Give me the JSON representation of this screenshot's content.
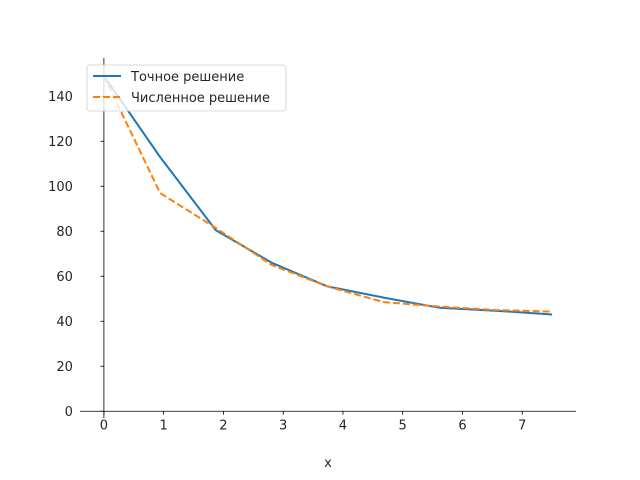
{
  "chart_data": {
    "type": "line",
    "title": "",
    "xlabel": "x",
    "ylabel": "",
    "xlim": [
      -0.4,
      7.9
    ],
    "ylim": [
      -3,
      157
    ],
    "xticks": [
      "0",
      "1",
      "2",
      "3",
      "4",
      "5",
      "6",
      "7"
    ],
    "yticks": [
      "0",
      "20",
      "40",
      "60",
      "80",
      "100",
      "120",
      "140"
    ],
    "grid": false,
    "legend_position": "top-left",
    "series": [
      {
        "name": "Точное решение",
        "color": "#1f77b4",
        "style": "solid",
        "x": [
          0,
          0.94,
          1.87,
          2.81,
          3.74,
          4.68,
          5.62,
          6.55,
          7.5
        ],
        "y": [
          149,
          113,
          80.5,
          66,
          55.5,
          50.5,
          46,
          44.7,
          43
        ]
      },
      {
        "name": "Численное решение",
        "color": "#ff7f0e",
        "style": "dashed",
        "x": [
          0,
          0.94,
          1.87,
          2.81,
          3.74,
          4.68,
          5.62,
          6.55,
          7.5
        ],
        "y": [
          149,
          97,
          81.5,
          65,
          55.5,
          48.5,
          46.5,
          45,
          44.3
        ]
      }
    ]
  }
}
